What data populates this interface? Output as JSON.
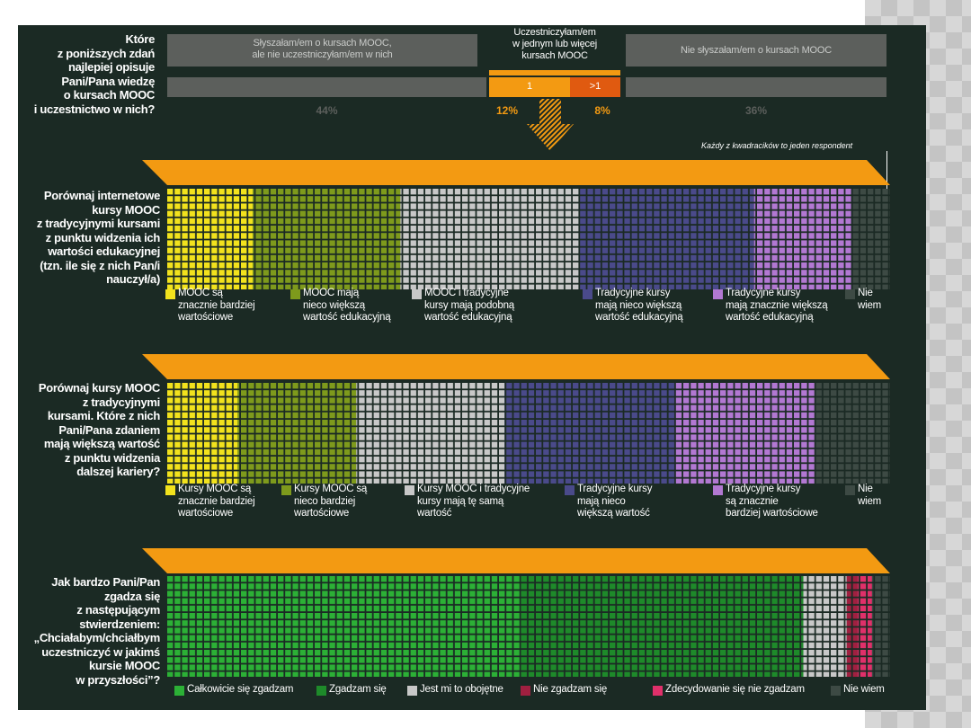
{
  "header": {
    "question": "Które\nz poniższych zdań\nnajlepiej opisuje\nPani/Pana wiedzę\no kursach MOOC\ni uczestnictwo w nich?",
    "heard_label": "Słyszałam/em o kursach MOOC,\nale nie uczestniczyłam/em w nich",
    "heard_pct": "44%",
    "participated_label": "Uczestniczyłam/em\nw jednym lub więcej\nkursach MOOC",
    "one_label": "1",
    "more_label": ">1",
    "one_pct": "12%",
    "more_pct": "8%",
    "not_heard_label": "Nie słyszałam/em o kursach MOOC",
    "not_heard_pct": "36%",
    "note": "Każdy z kwadracików to jeden respondent"
  },
  "colors": {
    "panel": "#1b2a24",
    "orange": "#f39a12",
    "yellow": "#f2e21d",
    "olive": "#7e9a1c",
    "lightgray": "#c8c8c8",
    "navy": "#4a4a8a",
    "purple": "#b278d2",
    "darkgray": "#3d4a44",
    "green1": "#2cb036",
    "green2": "#1e8a2a",
    "red": "#a02040",
    "pink": "#e0306a"
  },
  "chart_data": [
    {
      "type": "waffle",
      "title": "Porównaj internetowe\nkursy MOOC\nz tradycyjnymi kursami\nz punktu widzenia ich\nwartości edukacyjnej\n(tzn. ile się z nich Pan/i\nnauczył/a)",
      "unit_note": "Każdy z kwadracików to jeden respondent",
      "series": [
        {
          "name": "MOOC są\nznacznie bardziej\nwartościowe",
          "value": 11,
          "color": "#f2e21d"
        },
        {
          "name": "MOOC mają\nnieco większą\nwartość edukacyjną",
          "value": 19,
          "color": "#7e9a1c"
        },
        {
          "name": "MOOC i tradycyjne\nkursy mają podobną\nwartość edukacyjną",
          "value": 23,
          "color": "#c8c8c8"
        },
        {
          "name": "Tradycyjne kursy\nmają nieco większą\nwartość edukacyjną",
          "value": 22.5,
          "color": "#4a4a8a"
        },
        {
          "name": "Tradycyjne kursy\nmają znacznie większą\nwartość edukacyjną",
          "value": 12.5,
          "color": "#b278d2"
        },
        {
          "name": "Nie\nwiem",
          "value": 5,
          "color": "#3d4a44"
        }
      ]
    },
    {
      "type": "waffle",
      "title": "Porównaj kursy MOOC\nz tradycyjnymi\nkursami. Które z nich\nPani/Pana zdaniem\nmają większą wartość\nz punktu widzenia\ndalszej kariery?",
      "series": [
        {
          "name": "Kursy MOOC są\nznacznie bardziej\nwartościowe",
          "value": 9.5,
          "color": "#f2e21d"
        },
        {
          "name": "Kursy MOOC są\nnieco bardziej\nwartościowe",
          "value": 16,
          "color": "#7e9a1c"
        },
        {
          "name": "Kursy MOOC i tradycyjne\nkursy mają tę samą\nwartość",
          "value": 20,
          "color": "#c8c8c8"
        },
        {
          "name": "Tradycyjne kursy\nmają nieco\nwiększą wartość",
          "value": 23,
          "color": "#4a4a8a"
        },
        {
          "name": "Tradycyjne kursy\nsą znacznie\nbardziej wartościowe",
          "value": 19,
          "color": "#b278d2"
        },
        {
          "name": "Nie\nwiem",
          "value": 10,
          "color": "#3d4a44"
        }
      ]
    },
    {
      "type": "waffle",
      "title": "Jak bardzo Pani/Pan\nzgadza się\nz następującym\nstwierdzeniem:\n„Chciałabym/chciałbym\nuczestniczyć w jakimś\nkursie MOOC\nw przyszłości”?",
      "series": [
        {
          "name": "Całkowicie się zgadzam",
          "value": 49,
          "color": "#2cb036"
        },
        {
          "name": "Zgadzam się",
          "value": 39,
          "color": "#1e8a2a"
        },
        {
          "name": "Jest mi to obojętne",
          "value": 6,
          "color": "#c8c8c8"
        },
        {
          "name": "Nie zgadzam się",
          "value": 1.5,
          "color": "#a02040"
        },
        {
          "name": "Zdecydowanie się nie zgadzam",
          "value": 2,
          "color": "#e0306a"
        },
        {
          "name": "Nie wiem",
          "value": 2.5,
          "color": "#3d4a44"
        }
      ]
    }
  ]
}
